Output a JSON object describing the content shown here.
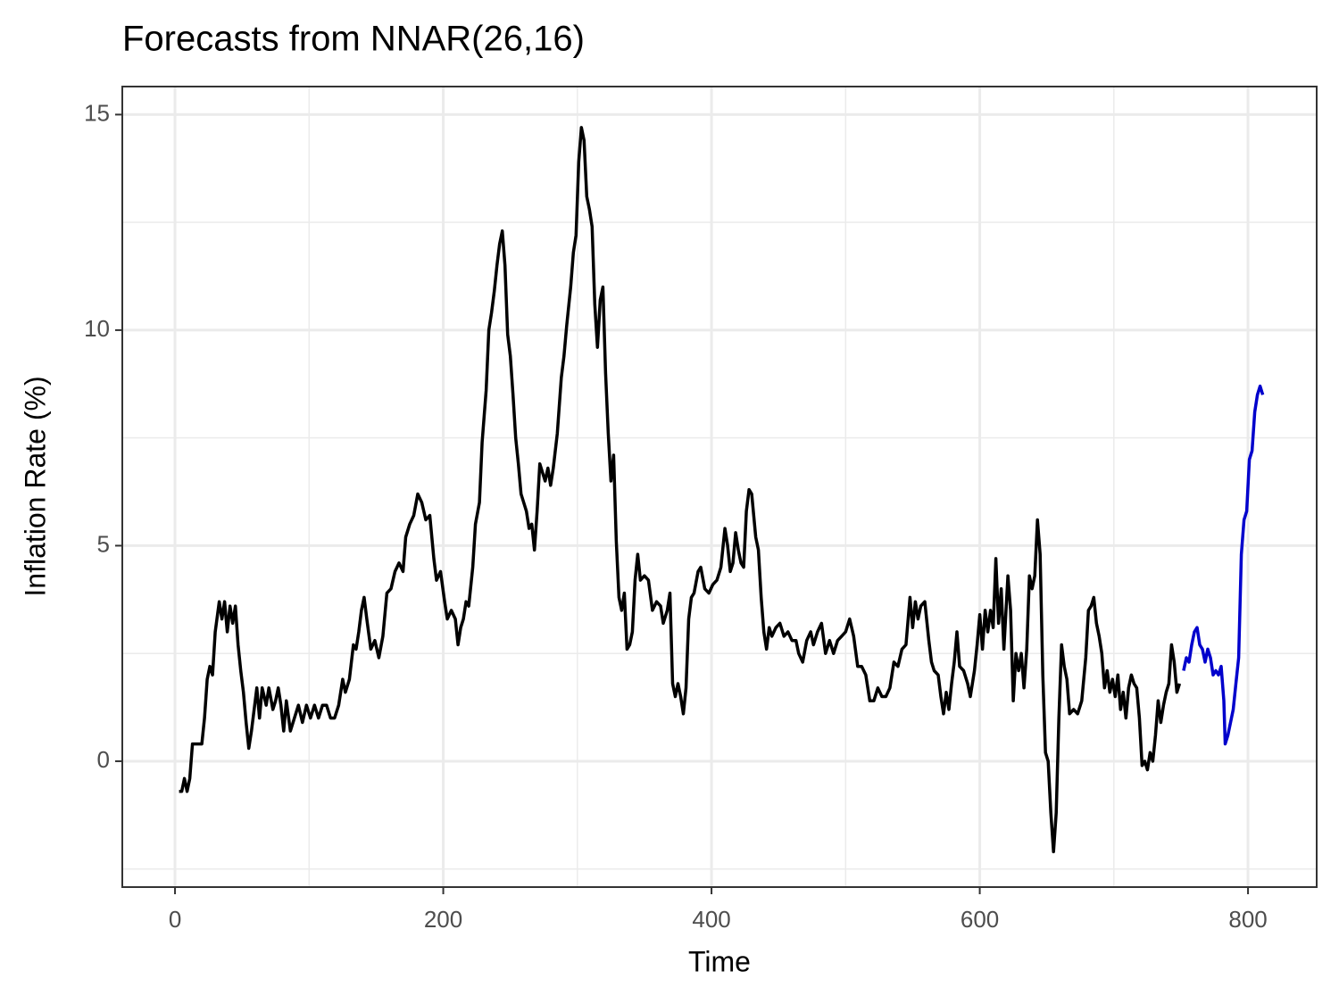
{
  "chart_data": {
    "type": "line",
    "title": "Forecasts from NNAR(26,16)",
    "x_label": "Time",
    "y_label": "Inflation Rate (%)",
    "xlim": [
      -39.3,
      851.2
    ],
    "ylim": [
      -2.92,
      15.65
    ],
    "xticks": [
      0,
      200,
      400,
      600,
      800
    ],
    "yticks": [
      0,
      5,
      10,
      15
    ],
    "x_minor_ticks": [
      100,
      300,
      500,
      700
    ],
    "y_minor_ticks": [
      -2.5,
      2.5,
      7.5,
      12.5
    ],
    "grid": true,
    "series": [
      {
        "color": "#000000",
        "x": [
          3,
          5,
          7,
          9,
          11,
          13,
          18,
          20,
          22,
          24,
          26,
          28,
          30,
          33,
          35,
          37,
          39,
          41,
          43,
          45,
          47,
          49,
          51,
          53,
          55,
          57,
          59,
          61,
          63,
          65,
          68,
          70,
          73,
          75,
          77,
          79,
          81,
          83,
          86,
          89,
          92,
          95,
          98,
          101,
          104,
          107,
          110,
          113,
          116,
          119,
          122,
          125,
          127,
          130,
          133,
          135,
          137,
          139,
          141,
          143,
          146,
          149,
          152,
          155,
          158,
          161,
          164,
          167,
          170,
          172,
          175,
          178,
          181,
          184,
          187,
          190,
          193,
          195,
          198,
          201,
          203,
          206,
          209,
          211,
          213,
          215,
          217,
          219,
          222,
          224,
          227,
          229,
          232,
          234,
          236,
          238,
          240,
          242,
          244,
          246,
          248,
          250,
          252,
          254,
          256,
          258,
          260,
          262,
          264,
          266,
          268,
          270,
          272,
          274,
          276,
          278,
          280,
          282,
          285,
          288,
          290,
          292,
          295,
          297,
          299,
          301,
          303,
          305,
          307,
          309,
          311,
          313,
          315,
          317,
          319,
          321,
          323,
          325,
          327,
          329,
          331,
          333,
          335,
          337,
          339,
          341,
          343,
          345,
          347,
          350,
          353,
          356,
          359,
          362,
          364,
          367,
          369,
          371,
          373,
          375,
          377,
          379,
          381,
          383,
          385,
          387,
          390,
          392,
          395,
          398,
          401,
          404,
          407,
          410,
          412,
          414,
          416,
          418,
          420,
          422,
          424,
          426,
          428,
          430,
          433,
          435,
          437,
          439,
          441,
          443,
          445,
          448,
          451,
          454,
          457,
          460,
          463,
          465,
          468,
          471,
          474,
          476,
          479,
          482,
          485,
          488,
          491,
          494,
          497,
          500,
          503,
          506,
          509,
          512,
          515,
          518,
          521,
          524,
          527,
          530,
          533,
          536,
          539,
          542,
          545,
          548,
          550,
          552,
          554,
          556,
          559,
          562,
          564,
          566,
          569,
          571,
          573,
          575,
          577,
          579,
          581,
          583,
          585,
          588,
          591,
          593,
          596,
          598,
          600,
          602,
          604,
          606,
          608,
          610,
          612,
          614,
          616,
          618,
          621,
          623,
          625,
          627,
          629,
          631,
          633,
          635,
          637,
          639,
          641,
          643,
          645,
          647,
          649,
          651,
          653,
          655,
          657,
          659,
          661,
          663,
          665,
          667,
          670,
          673,
          676,
          679,
          681,
          683,
          685,
          687,
          689,
          691,
          693,
          695,
          697,
          699,
          701,
          703,
          705,
          707,
          709,
          711,
          713,
          715,
          717,
          719,
          721,
          723,
          725,
          727,
          729,
          731,
          733,
          735,
          737,
          739,
          741,
          743,
          745,
          747,
          749
        ],
        "values": [
          -0.7,
          -0.7,
          -0.4,
          -0.7,
          -0.4,
          0.4,
          0.4,
          0.4,
          1.0,
          1.9,
          2.2,
          2.0,
          3.0,
          3.7,
          3.3,
          3.7,
          3.0,
          3.6,
          3.2,
          3.6,
          2.7,
          2.1,
          1.6,
          0.9,
          0.3,
          0.7,
          1.2,
          1.7,
          1.0,
          1.7,
          1.3,
          1.7,
          1.2,
          1.4,
          1.7,
          1.3,
          0.7,
          1.4,
          0.7,
          1.0,
          1.3,
          0.9,
          1.3,
          1.0,
          1.3,
          1.0,
          1.3,
          1.3,
          1.0,
          1.0,
          1.3,
          1.9,
          1.6,
          1.9,
          2.7,
          2.6,
          3.0,
          3.5,
          3.8,
          3.3,
          2.6,
          2.8,
          2.4,
          2.9,
          3.9,
          4.0,
          4.4,
          4.6,
          4.4,
          5.2,
          5.5,
          5.7,
          6.2,
          6.0,
          5.6,
          5.7,
          4.7,
          4.2,
          4.4,
          3.7,
          3.3,
          3.5,
          3.3,
          2.7,
          3.1,
          3.3,
          3.7,
          3.6,
          4.5,
          5.5,
          6.0,
          7.4,
          8.6,
          10.0,
          10.4,
          10.9,
          11.5,
          12.0,
          12.3,
          11.5,
          9.9,
          9.4,
          8.5,
          7.5,
          6.9,
          6.2,
          6.0,
          5.8,
          5.4,
          5.5,
          4.9,
          5.8,
          6.9,
          6.7,
          6.5,
          6.8,
          6.4,
          6.8,
          7.6,
          8.9,
          9.4,
          10.1,
          11.0,
          11.8,
          12.2,
          13.9,
          14.7,
          14.4,
          13.1,
          12.8,
          12.4,
          10.6,
          9.6,
          10.7,
          11.0,
          9.0,
          7.6,
          6.5,
          7.1,
          5.1,
          3.8,
          3.5,
          3.9,
          2.6,
          2.7,
          3.0,
          4.2,
          4.8,
          4.2,
          4.3,
          4.2,
          3.5,
          3.7,
          3.6,
          3.2,
          3.5,
          3.9,
          1.8,
          1.5,
          1.8,
          1.5,
          1.1,
          1.7,
          3.3,
          3.8,
          3.9,
          4.4,
          4.5,
          4.0,
          3.9,
          4.1,
          4.2,
          4.5,
          5.4,
          5.0,
          4.4,
          4.6,
          5.3,
          4.9,
          4.6,
          4.5,
          5.8,
          6.3,
          6.2,
          5.2,
          4.9,
          3.8,
          3.0,
          2.6,
          3.1,
          2.9,
          3.1,
          3.2,
          2.9,
          3.0,
          2.8,
          2.8,
          2.5,
          2.3,
          2.8,
          3.0,
          2.7,
          3.0,
          3.2,
          2.5,
          2.8,
          2.5,
          2.8,
          2.9,
          3.0,
          3.3,
          2.9,
          2.2,
          2.2,
          2.0,
          1.4,
          1.4,
          1.7,
          1.5,
          1.5,
          1.7,
          2.3,
          2.2,
          2.6,
          2.7,
          3.8,
          3.1,
          3.7,
          3.3,
          3.6,
          3.7,
          2.8,
          2.3,
          2.1,
          2.0,
          1.5,
          1.1,
          1.6,
          1.2,
          1.8,
          2.3,
          3.0,
          2.2,
          2.1,
          1.8,
          1.5,
          2.1,
          2.7,
          3.4,
          2.6,
          3.5,
          3.0,
          3.5,
          3.1,
          4.7,
          3.2,
          4.0,
          2.6,
          4.3,
          3.5,
          1.4,
          2.5,
          2.1,
          2.5,
          1.7,
          2.6,
          4.3,
          4.0,
          4.3,
          5.6,
          4.8,
          2.0,
          0.2,
          0.0,
          -1.2,
          -2.1,
          -1.2,
          1.0,
          2.7,
          2.2,
          1.9,
          1.1,
          1.2,
          1.1,
          1.4,
          2.4,
          3.5,
          3.6,
          3.8,
          3.2,
          2.9,
          2.5,
          1.7,
          2.1,
          1.6,
          1.9,
          1.5,
          2.0,
          1.2,
          1.6,
          1.0,
          1.7,
          2.0,
          1.8,
          1.7,
          1.0,
          -0.1,
          0.0,
          -0.2,
          0.2,
          0.0,
          0.6,
          1.4,
          0.9,
          1.3,
          1.6,
          1.8,
          2.7,
          2.3,
          1.6,
          1.8
        ]
      },
      {
        "color": "#0000cc",
        "x": [
          752,
          754,
          756,
          758,
          760,
          762,
          764,
          766,
          768,
          770,
          772,
          774,
          776,
          778,
          780,
          782,
          783,
          785,
          787,
          789,
          791,
          793,
          795,
          797,
          799,
          801,
          803,
          805,
          807,
          809,
          811
        ],
        "values": [
          2.1,
          2.4,
          2.3,
          2.7,
          3.0,
          3.1,
          2.7,
          2.6,
          2.3,
          2.6,
          2.4,
          2.0,
          2.1,
          2.0,
          2.2,
          1.4,
          0.4,
          0.6,
          0.9,
          1.2,
          1.8,
          2.4,
          4.8,
          5.6,
          5.8,
          7.0,
          7.2,
          8.1,
          8.5,
          8.7,
          8.5
        ]
      }
    ]
  }
}
